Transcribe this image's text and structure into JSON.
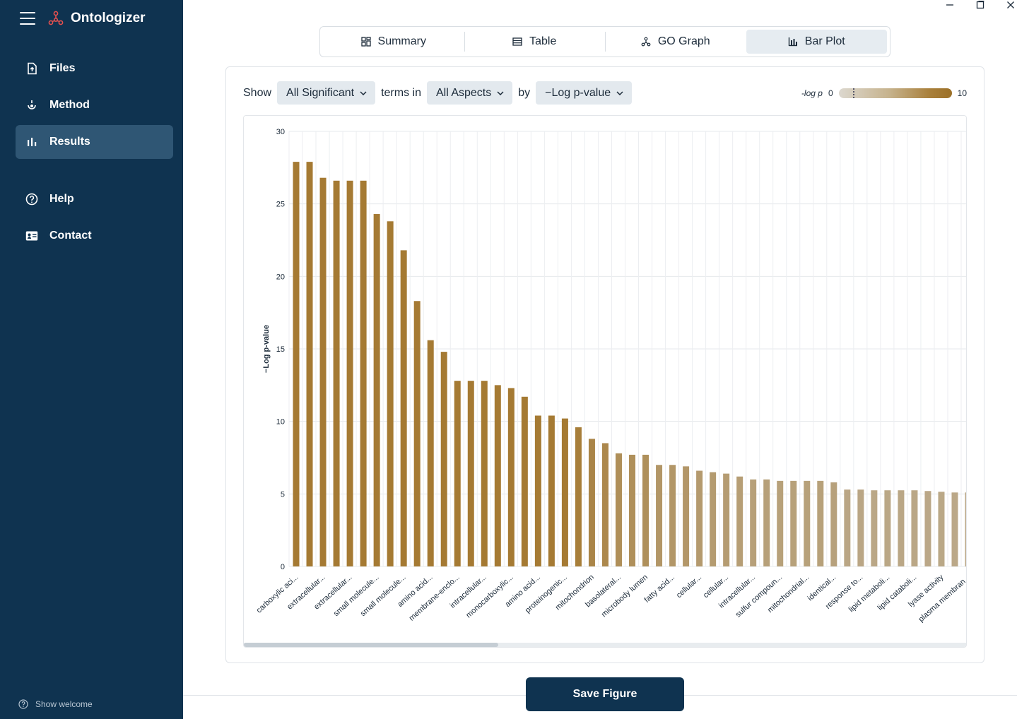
{
  "app": {
    "title": "Ontologizer"
  },
  "sidebar": {
    "items": [
      {
        "label": "Files",
        "icon": "file-upload-icon"
      },
      {
        "label": "Method",
        "icon": "method-icon"
      },
      {
        "label": "Results",
        "icon": "bar-chart-icon",
        "active": true
      },
      {
        "label": "Help",
        "icon": "help-icon"
      },
      {
        "label": "Contact",
        "icon": "contact-card-icon"
      }
    ],
    "show_welcome": "Show welcome"
  },
  "tabs": [
    {
      "label": "Summary",
      "icon": "summary-grid-icon"
    },
    {
      "label": "Table",
      "icon": "table-icon"
    },
    {
      "label": "GO Graph",
      "icon": "graph-icon"
    },
    {
      "label": "Bar Plot",
      "icon": "bar-plot-icon",
      "active": true
    }
  ],
  "controls": {
    "show_label": "Show",
    "filter_value": "All Significant",
    "terms_in_label": "terms in",
    "aspect_value": "All Aspects",
    "by_label": "by",
    "metric_value": "−Log p-value"
  },
  "legend": {
    "label": "-log p",
    "min": "0",
    "max": "10"
  },
  "save_button": "Save Figure",
  "colors": {
    "sidebar": "#0f3350",
    "bar_dark": "#a57a33",
    "bar_light": "#bba98a"
  },
  "chart_data": {
    "type": "bar",
    "ylabel": "−Log p-value",
    "ylim": [
      0,
      30
    ],
    "yticks": [
      0,
      5,
      10,
      15,
      20,
      25,
      30
    ],
    "grid": true,
    "categories": [
      "carboxylic aci...",
      "",
      "extracellular...",
      "",
      "extracellular...",
      "",
      "small molecule...",
      "",
      "small molecule...",
      "",
      "amino acid...",
      "",
      "membrane-enclo...",
      "",
      "intracellular...",
      "",
      "monocarboxylic...",
      "",
      "amino acid...",
      "",
      "proteinogenic...",
      "",
      "mitochondrion",
      "",
      "basolateral...",
      "",
      "microbody lumen",
      "",
      "fatty acid...",
      "",
      "cellular...",
      "",
      "cellular...",
      "",
      "intracellular...",
      "",
      "sulfur compoun...",
      "",
      "mitochondrial...",
      "",
      "identical...",
      "",
      "response to...",
      "",
      "lipid metaboli...",
      "",
      "lipid cataboli...",
      "",
      "lyase activity",
      "",
      "plasma membran..."
    ],
    "values": [
      27.9,
      27.9,
      26.8,
      26.6,
      26.6,
      26.6,
      24.3,
      23.8,
      21.8,
      18.3,
      15.6,
      14.8,
      12.8,
      12.8,
      12.8,
      12.5,
      12.3,
      11.7,
      10.4,
      10.4,
      10.2,
      9.6,
      8.8,
      8.5,
      7.8,
      7.7,
      7.7,
      7.0,
      7.0,
      6.9,
      6.6,
      6.5,
      6.4,
      6.2,
      6.0,
      6.0,
      5.9,
      5.9,
      5.9,
      5.9,
      5.8,
      5.3,
      5.3,
      5.25,
      5.25,
      5.25,
      5.25,
      5.2,
      5.15,
      5.1,
      5.1
    ]
  }
}
